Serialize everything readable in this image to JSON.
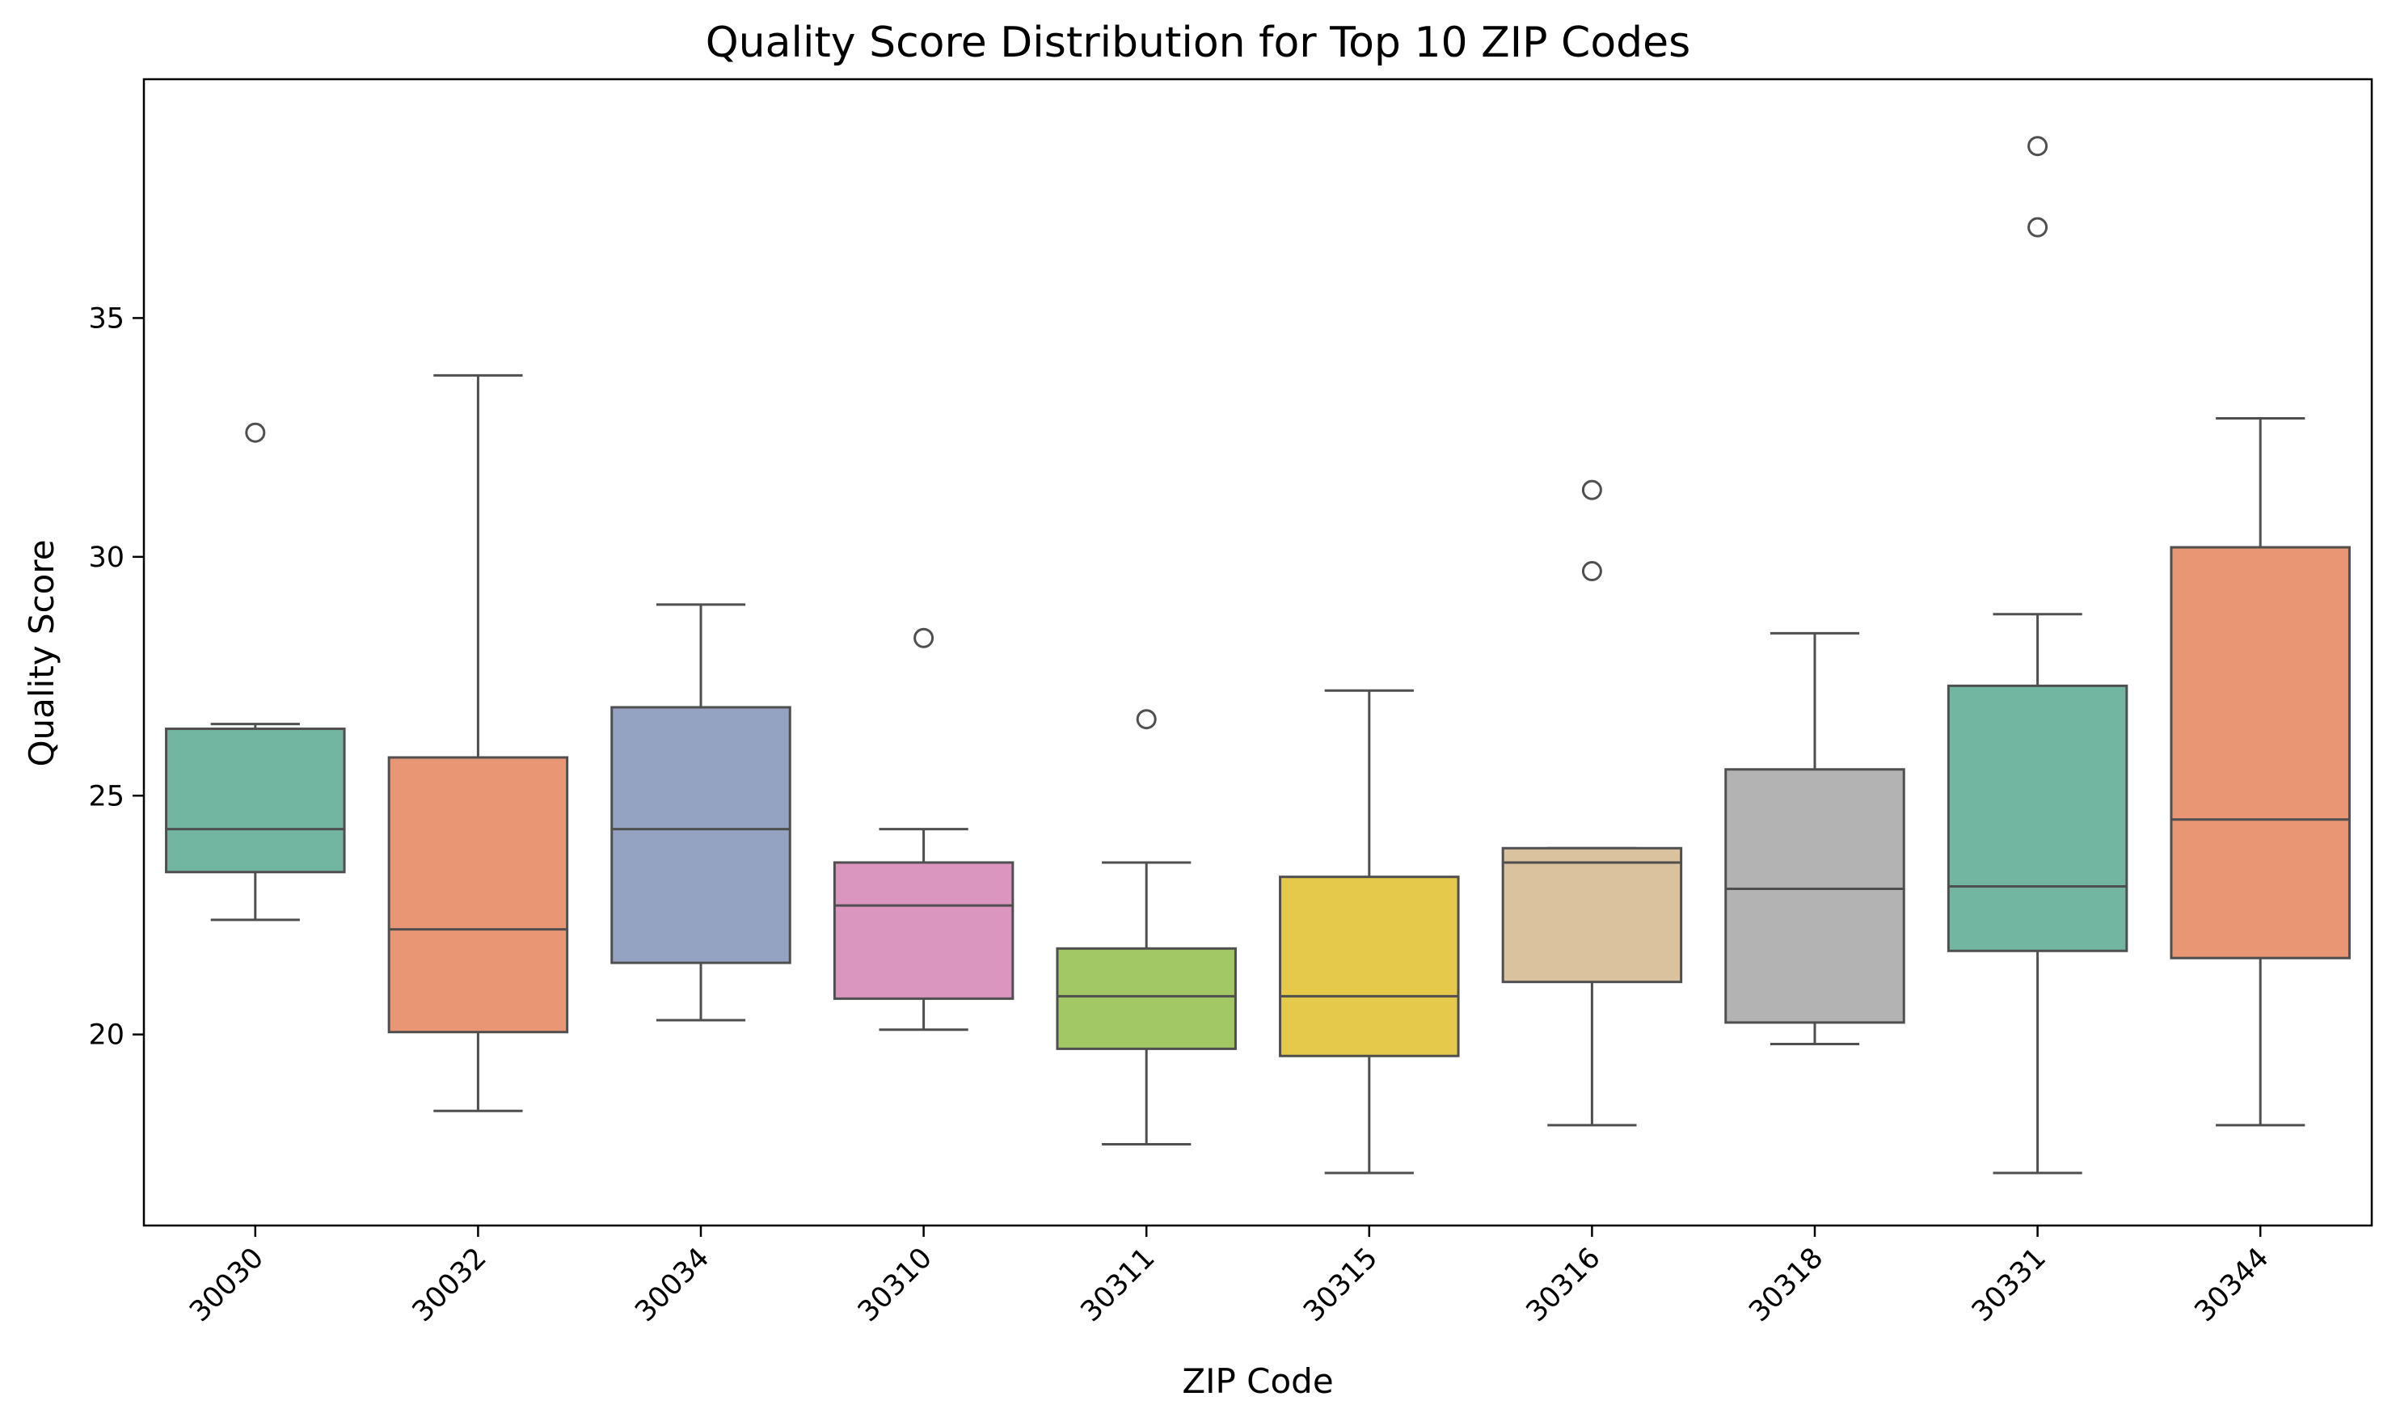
{
  "chart_data": {
    "type": "box",
    "title": "Quality Score Distribution for Top 10 ZIP Codes",
    "xlabel": "ZIP Code",
    "ylabel": "Quality Score",
    "ylim": [
      16.0,
      40.0
    ],
    "yticks": [
      20,
      25,
      30,
      35
    ],
    "grid": false,
    "legend": "none",
    "categories": [
      "30030",
      "30032",
      "30034",
      "30310",
      "30311",
      "30315",
      "30316",
      "30318",
      "30331",
      "30344"
    ],
    "boxes": [
      {
        "category": "30030",
        "whisker_low": 22.4,
        "q1": 23.4,
        "median": 24.3,
        "q3": 26.4,
        "whisker_high": 26.5,
        "outliers": [
          32.6
        ],
        "color": "#72b6a1"
      },
      {
        "category": "30032",
        "whisker_low": 18.4,
        "q1": 20.05,
        "median": 22.2,
        "q3": 25.8,
        "whisker_high": 33.8,
        "outliers": [],
        "color": "#e99675"
      },
      {
        "category": "30034",
        "whisker_low": 20.3,
        "q1": 21.5,
        "median": 24.3,
        "q3": 26.85,
        "whisker_high": 29.0,
        "outliers": [],
        "color": "#95a3c3"
      },
      {
        "category": "30310",
        "whisker_low": 20.1,
        "q1": 20.75,
        "median": 22.7,
        "q3": 23.6,
        "whisker_high": 24.3,
        "outliers": [
          28.3
        ],
        "color": "#db96c0"
      },
      {
        "category": "30311",
        "whisker_low": 17.7,
        "q1": 19.7,
        "median": 20.8,
        "q3": 21.8,
        "whisker_high": 23.6,
        "outliers": [
          26.6
        ],
        "color": "#a2c865"
      },
      {
        "category": "30315",
        "whisker_low": 17.1,
        "q1": 19.55,
        "median": 20.8,
        "q3": 23.3,
        "whisker_high": 27.2,
        "outliers": [],
        "color": "#e5c94a"
      },
      {
        "category": "30316",
        "whisker_low": 18.1,
        "q1": 21.1,
        "median": 23.6,
        "q3": 23.9,
        "whisker_high": 23.9,
        "outliers": [
          29.7,
          31.4
        ],
        "color": "#dbc29e"
      },
      {
        "category": "30318",
        "whisker_low": 19.8,
        "q1": 20.25,
        "median": 23.05,
        "q3": 25.55,
        "whisker_high": 28.4,
        "outliers": [],
        "color": "#b3b3b3"
      },
      {
        "category": "30331",
        "whisker_low": 17.1,
        "q1": 21.75,
        "median": 23.1,
        "q3": 27.3,
        "whisker_high": 28.8,
        "outliers": [
          36.9,
          38.6
        ],
        "color": "#72b6a1"
      },
      {
        "category": "30344",
        "whisker_low": 18.1,
        "q1": 21.6,
        "median": 24.5,
        "q3": 30.2,
        "whisker_high": 32.9,
        "outliers": [],
        "color": "#e99675"
      }
    ]
  }
}
